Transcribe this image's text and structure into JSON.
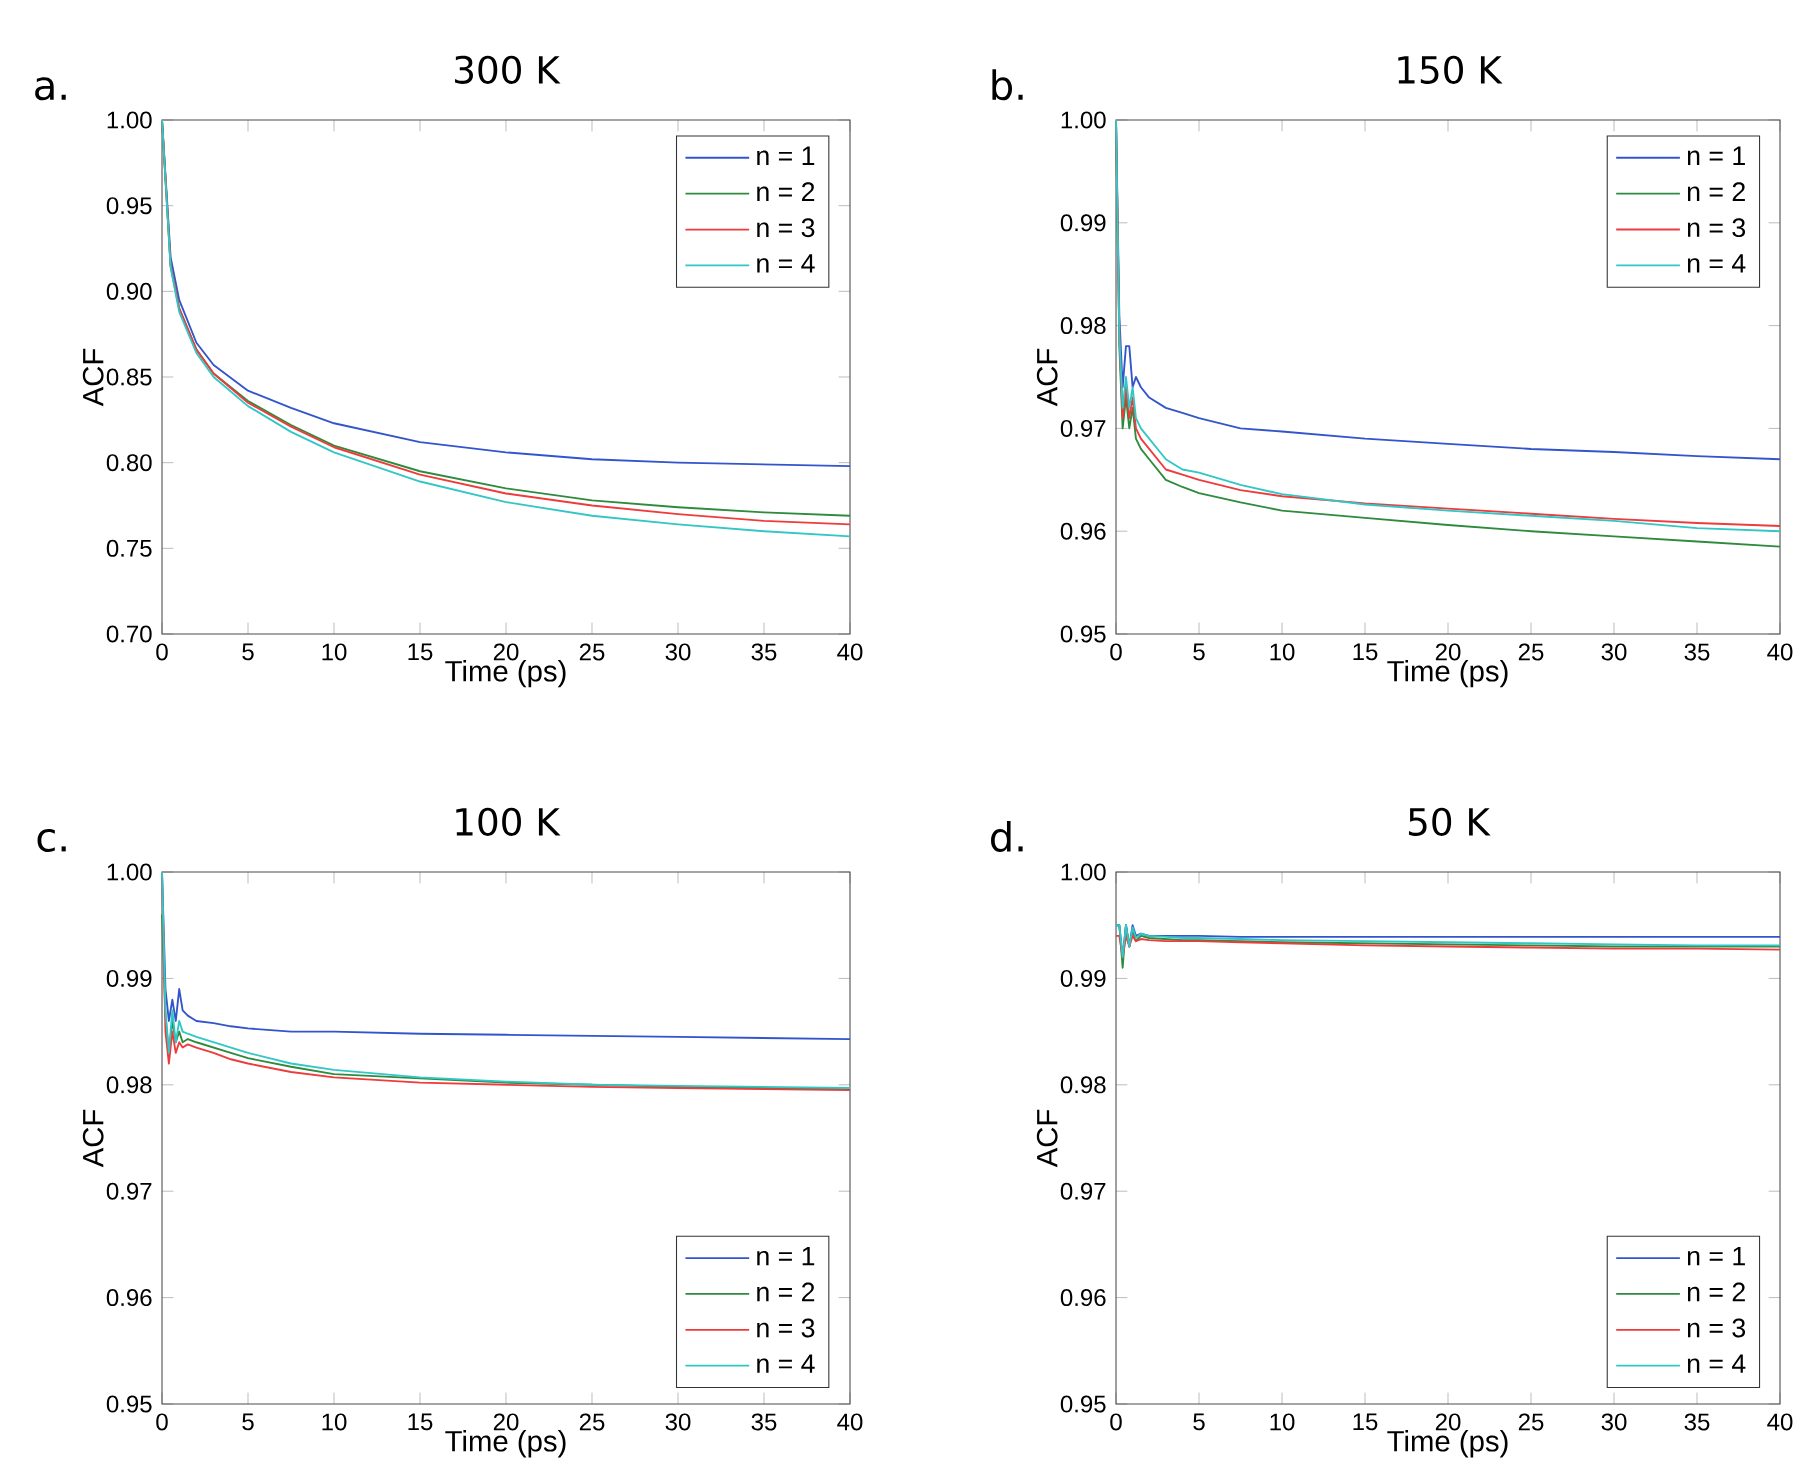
{
  "chart_data": [
    {
      "type": "line",
      "title": "300 K",
      "annotations": [
        "a."
      ],
      "xlabel": "Time (ps)",
      "ylabel": "ACF",
      "legend": "top right",
      "grid": false,
      "line_style": "solid",
      "xlim": [
        0,
        40
      ],
      "ylim": [
        0.7,
        1.0
      ],
      "xticks": [
        0,
        5,
        10,
        15,
        20,
        25,
        30,
        35,
        40
      ],
      "yticks": [
        {
          "value": 0.7,
          "label": "0.70"
        },
        {
          "value": 0.75,
          "label": "0.75"
        },
        {
          "value": 0.8,
          "label": "0.80"
        },
        {
          "value": 0.85,
          "label": "0.85"
        },
        {
          "value": 0.9,
          "label": "0.90"
        },
        {
          "value": 0.95,
          "label": "0.95"
        },
        {
          "value": 1.0,
          "label": "1.00"
        }
      ],
      "x": [
        0,
        0.5,
        1,
        2,
        3,
        5,
        7.5,
        10,
        15,
        20,
        25,
        30,
        35,
        40
      ],
      "series": [
        {
          "name": "n = 1",
          "color": "#3355cc",
          "values": [
            1.0,
            0.92,
            0.895,
            0.87,
            0.857,
            0.842,
            0.832,
            0.823,
            0.812,
            0.806,
            0.802,
            0.8,
            0.799,
            0.798
          ]
        },
        {
          "name": "n = 2",
          "color": "#2e8b3e",
          "values": [
            1.0,
            0.915,
            0.89,
            0.866,
            0.852,
            0.836,
            0.822,
            0.81,
            0.795,
            0.785,
            0.778,
            0.774,
            0.771,
            0.769
          ]
        },
        {
          "name": "n = 3",
          "color": "#ee3b3b",
          "values": [
            1.0,
            0.915,
            0.89,
            0.866,
            0.852,
            0.835,
            0.821,
            0.809,
            0.793,
            0.782,
            0.775,
            0.77,
            0.766,
            0.764
          ]
        },
        {
          "name": "n = 4",
          "color": "#33c6c6",
          "values": [
            1.0,
            0.914,
            0.888,
            0.864,
            0.85,
            0.833,
            0.818,
            0.806,
            0.789,
            0.777,
            0.769,
            0.764,
            0.76,
            0.757
          ]
        }
      ]
    },
    {
      "type": "line",
      "title": "150 K",
      "annotations": [
        "b."
      ],
      "xlabel": "Time (ps)",
      "ylabel": "ACF",
      "legend": "top right",
      "grid": false,
      "line_style": "solid",
      "xlim": [
        0,
        40
      ],
      "ylim": [
        0.95,
        1.0
      ],
      "xticks": [
        0,
        5,
        10,
        15,
        20,
        25,
        30,
        35,
        40
      ],
      "yticks": [
        0.95,
        0.96,
        0.97,
        0.98,
        0.99,
        {
          "value": 1.0,
          "label": "1.00"
        }
      ],
      "x": [
        0,
        0.2,
        0.4,
        0.6,
        0.8,
        1.0,
        1.2,
        1.5,
        2,
        3,
        4,
        5,
        7.5,
        10,
        15,
        20,
        25,
        30,
        35,
        40
      ],
      "series": [
        {
          "name": "n = 1",
          "color": "#3355cc",
          "values": [
            1.0,
            0.981,
            0.974,
            0.978,
            0.978,
            0.974,
            0.975,
            0.974,
            0.973,
            0.972,
            0.9715,
            0.971,
            0.97,
            0.9697,
            0.969,
            0.9685,
            0.968,
            0.9677,
            0.9673,
            0.967
          ]
        },
        {
          "name": "n = 2",
          "color": "#2e8b3e",
          "values": [
            1.0,
            0.978,
            0.97,
            0.973,
            0.97,
            0.972,
            0.969,
            0.968,
            0.967,
            0.965,
            0.9643,
            0.9637,
            0.9628,
            0.962,
            0.9613,
            0.9606,
            0.96,
            0.9595,
            0.959,
            0.9585
          ]
        },
        {
          "name": "n = 3",
          "color": "#ee3b3b",
          "values": [
            1.0,
            0.979,
            0.971,
            0.974,
            0.971,
            0.973,
            0.97,
            0.969,
            0.968,
            0.966,
            0.9655,
            0.965,
            0.964,
            0.9634,
            0.9627,
            0.9622,
            0.9617,
            0.9612,
            0.9608,
            0.9605
          ]
        },
        {
          "name": "n = 4",
          "color": "#33c6c6",
          "values": [
            1.0,
            0.979,
            0.972,
            0.975,
            0.972,
            0.974,
            0.971,
            0.97,
            0.969,
            0.967,
            0.966,
            0.9657,
            0.9645,
            0.9636,
            0.9626,
            0.962,
            0.9615,
            0.961,
            0.9603,
            0.96
          ]
        }
      ]
    },
    {
      "type": "line",
      "title": "100 K",
      "annotations": [
        "c."
      ],
      "xlabel": "Time (ps)",
      "ylabel": "ACF",
      "legend": "bottom right",
      "grid": false,
      "line_style": "solid",
      "xlim": [
        0,
        40
      ],
      "ylim": [
        0.95,
        1.0
      ],
      "xticks": [
        0,
        5,
        10,
        15,
        20,
        25,
        30,
        35,
        40
      ],
      "yticks": [
        0.95,
        0.96,
        0.97,
        0.98,
        0.99,
        {
          "value": 1.0,
          "label": "1.00"
        }
      ],
      "x": [
        0,
        0.2,
        0.4,
        0.6,
        0.8,
        1.0,
        1.2,
        1.5,
        2,
        3,
        4,
        5,
        7.5,
        10,
        15,
        20,
        25,
        30,
        35,
        40
      ],
      "series": [
        {
          "name": "n = 1",
          "color": "#3355cc",
          "values": [
            1.0,
            0.989,
            0.986,
            0.988,
            0.986,
            0.989,
            0.987,
            0.9865,
            0.986,
            0.9858,
            0.9855,
            0.9853,
            0.985,
            0.985,
            0.9848,
            0.9847,
            0.9846,
            0.9845,
            0.9844,
            0.9843
          ]
        },
        {
          "name": "n = 2",
          "color": "#2e8b3e",
          "values": [
            0.996,
            0.9865,
            0.983,
            0.986,
            0.984,
            0.985,
            0.984,
            0.9843,
            0.984,
            0.9835,
            0.983,
            0.9825,
            0.9817,
            0.981,
            0.9806,
            0.9802,
            0.98,
            0.9798,
            0.9797,
            0.9796
          ]
        },
        {
          "name": "n = 3",
          "color": "#ee3b3b",
          "values": [
            1.0,
            0.985,
            0.982,
            0.985,
            0.983,
            0.984,
            0.9835,
            0.9838,
            0.9835,
            0.983,
            0.9824,
            0.982,
            0.9812,
            0.9807,
            0.9802,
            0.98,
            0.9798,
            0.9797,
            0.9796,
            0.9795
          ]
        },
        {
          "name": "n = 4",
          "color": "#33c6c6",
          "values": [
            1.0,
            0.987,
            0.983,
            0.987,
            0.984,
            0.986,
            0.985,
            0.9848,
            0.9845,
            0.984,
            0.9835,
            0.983,
            0.982,
            0.9814,
            0.9807,
            0.9803,
            0.98,
            0.9799,
            0.9798,
            0.9797
          ]
        }
      ]
    },
    {
      "type": "line",
      "title": "50 K",
      "annotations": [
        "d."
      ],
      "xlabel": "Time (ps)",
      "ylabel": "ACF",
      "legend": "bottom right",
      "grid": false,
      "line_style": "solid",
      "xlim": [
        0,
        40
      ],
      "ylim": [
        0.95,
        1.0
      ],
      "xticks": [
        0,
        5,
        10,
        15,
        20,
        25,
        30,
        35,
        40
      ],
      "yticks": [
        0.95,
        0.96,
        0.97,
        0.98,
        0.99,
        {
          "value": 1.0,
          "label": "1.00"
        }
      ],
      "x": [
        0,
        0.2,
        0.4,
        0.6,
        0.8,
        1.0,
        1.2,
        1.5,
        2,
        3,
        4,
        5,
        7.5,
        10,
        15,
        20,
        25,
        30,
        35,
        40
      ],
      "series": [
        {
          "name": "n = 1",
          "color": "#3355cc",
          "values": [
            0.995,
            0.995,
            0.992,
            0.995,
            0.993,
            0.995,
            0.994,
            0.9942,
            0.994,
            0.994,
            0.994,
            0.994,
            0.9939,
            0.9939,
            0.9939,
            0.9939,
            0.9939,
            0.9939,
            0.9939,
            0.9939
          ]
        },
        {
          "name": "n = 2",
          "color": "#2e8b3e",
          "values": [
            0.995,
            0.995,
            0.991,
            0.995,
            0.993,
            0.9945,
            0.9935,
            0.994,
            0.9938,
            0.9937,
            0.9936,
            0.9936,
            0.9935,
            0.9934,
            0.9933,
            0.9932,
            0.9931,
            0.993,
            0.993,
            0.993
          ]
        },
        {
          "name": "n = 3",
          "color": "#ee3b3b",
          "values": [
            0.994,
            0.994,
            0.992,
            0.994,
            0.993,
            0.994,
            0.9935,
            0.9937,
            0.9936,
            0.9935,
            0.9935,
            0.9935,
            0.9934,
            0.9933,
            0.9931,
            0.993,
            0.9929,
            0.9928,
            0.9928,
            0.9927
          ]
        },
        {
          "name": "n = 4",
          "color": "#33c6c6",
          "values": [
            0.995,
            0.995,
            0.992,
            0.995,
            0.993,
            0.9948,
            0.9938,
            0.9942,
            0.994,
            0.9939,
            0.9938,
            0.9938,
            0.9937,
            0.9936,
            0.9935,
            0.9934,
            0.9933,
            0.9932,
            0.9931,
            0.9931
          ]
        }
      ]
    }
  ]
}
